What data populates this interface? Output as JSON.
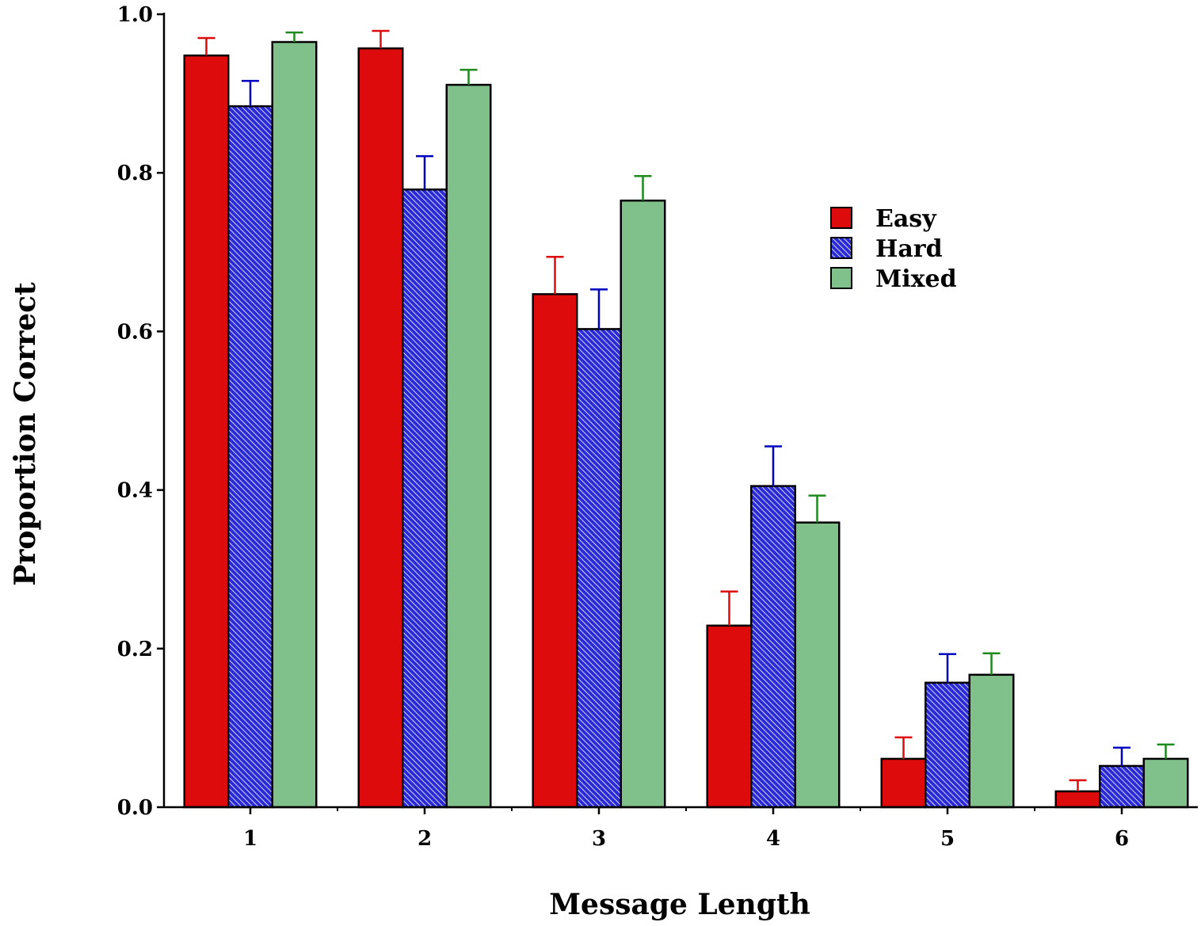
{
  "chart_data": {
    "type": "bar",
    "xlabel": "Message Length",
    "ylabel": "Proportion Correct",
    "ylim": [
      0,
      1.0
    ],
    "yticks": [
      "0.0",
      "0.2",
      "0.4",
      "0.6",
      "0.8",
      "1.0"
    ],
    "categories": [
      "1",
      "2",
      "3",
      "4",
      "5",
      "6"
    ],
    "legend_position": "top-right",
    "grid": false,
    "series": [
      {
        "name": "Easy",
        "color": "#dd0b0b",
        "pattern": "solid",
        "values": [
          0.948,
          0.957,
          0.647,
          0.229,
          0.061,
          0.02
        ],
        "errors": [
          0.022,
          0.022,
          0.047,
          0.043,
          0.027,
          0.014
        ]
      },
      {
        "name": "Hard",
        "color": "#2a2ad6",
        "pattern": "hatched",
        "values": [
          0.884,
          0.779,
          0.603,
          0.405,
          0.157,
          0.052
        ],
        "errors": [
          0.032,
          0.042,
          0.05,
          0.05,
          0.036,
          0.023
        ]
      },
      {
        "name": "Mixed",
        "color": "#80c08a",
        "pattern": "solid",
        "values": [
          0.965,
          0.911,
          0.765,
          0.359,
          0.167,
          0.061
        ],
        "errors": [
          0.012,
          0.019,
          0.031,
          0.034,
          0.027,
          0.018
        ]
      }
    ],
    "error_bar_colors": [
      "#dd0b0b",
      "#0000c0",
      "#1e8a1e"
    ]
  }
}
